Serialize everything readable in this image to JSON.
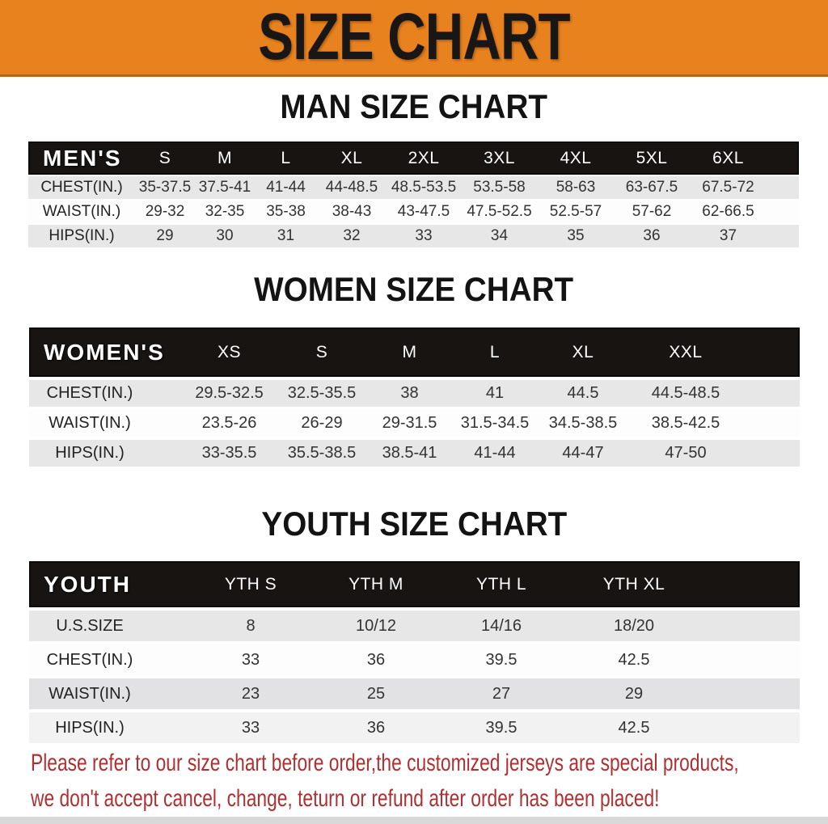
{
  "banner": {
    "title": "SIZE CHART"
  },
  "sections": [
    {
      "heading": "MAN SIZE CHART",
      "table": {
        "label": "MEN'S",
        "columns": [
          "S",
          "M",
          "L",
          "XL",
          "2XL",
          "3XL",
          "4XL",
          "5XL",
          "6XL"
        ],
        "rows": [
          {
            "label": "CHEST(IN.)",
            "values": [
              "35-37.5",
              "37.5-41",
              "41-44",
              "44-48.5",
              "48.5-53.5",
              "53.5-58",
              "58-63",
              "63-67.5",
              "67.5-72"
            ]
          },
          {
            "label": "WAIST(IN.)",
            "values": [
              "29-32",
              "32-35",
              "35-38",
              "38-43",
              "43-47.5",
              "47.5-52.5",
              "52.5-57",
              "57-62",
              "62-66.5"
            ]
          },
          {
            "label": "HIPS(IN.)",
            "values": [
              "29",
              "30",
              "31",
              "32",
              "33",
              "34",
              "35",
              "36",
              "37"
            ]
          }
        ]
      }
    },
    {
      "heading": "WOMEN SIZE CHART",
      "table": {
        "label": "WOMEN'S",
        "columns": [
          "XS",
          "S",
          "M",
          "L",
          "XL",
          "XXL"
        ],
        "rows": [
          {
            "label": "CHEST(IN.)",
            "values": [
              "29.5-32.5",
              "32.5-35.5",
              "38",
              "41",
              "44.5",
              "44.5-48.5"
            ]
          },
          {
            "label": "WAIST(IN.)",
            "values": [
              "23.5-26",
              "26-29",
              "29-31.5",
              "31.5-34.5",
              "34.5-38.5",
              "38.5-42.5"
            ]
          },
          {
            "label": "HIPS(IN.)",
            "values": [
              "33-35.5",
              "35.5-38.5",
              "38.5-41",
              "41-44",
              "44-47",
              "47-50"
            ]
          }
        ]
      }
    },
    {
      "heading": "YOUTH SIZE CHART",
      "table": {
        "label": "YOUTH",
        "columns": [
          "YTH S",
          "YTH M",
          "YTH L",
          "YTH XL"
        ],
        "rows": [
          {
            "label": "U.S.SIZE",
            "values": [
              "8",
              "10/12",
              "14/16",
              "18/20"
            ]
          },
          {
            "label": "CHEST(IN.)",
            "values": [
              "33",
              "36",
              "39.5",
              "42.5"
            ]
          },
          {
            "label": "WAIST(IN.)",
            "values": [
              "23",
              "25",
              "27",
              "29"
            ]
          },
          {
            "label": "HIPS(IN.)",
            "values": [
              "33",
              "36",
              "39.5",
              "42.5"
            ]
          }
        ]
      }
    }
  ],
  "disclaimer": {
    "line1": "Please refer to our size chart before order,the customized jerseys are special products,",
    "line2": "we don't accept cancel, change, teturn or refund after order has been placed!"
  },
  "colors": {
    "banner_orange": "#E8821F",
    "header_black": "#171412",
    "stripe_gray": "#e7e7e7",
    "disclaimer_red": "#b02f31"
  }
}
